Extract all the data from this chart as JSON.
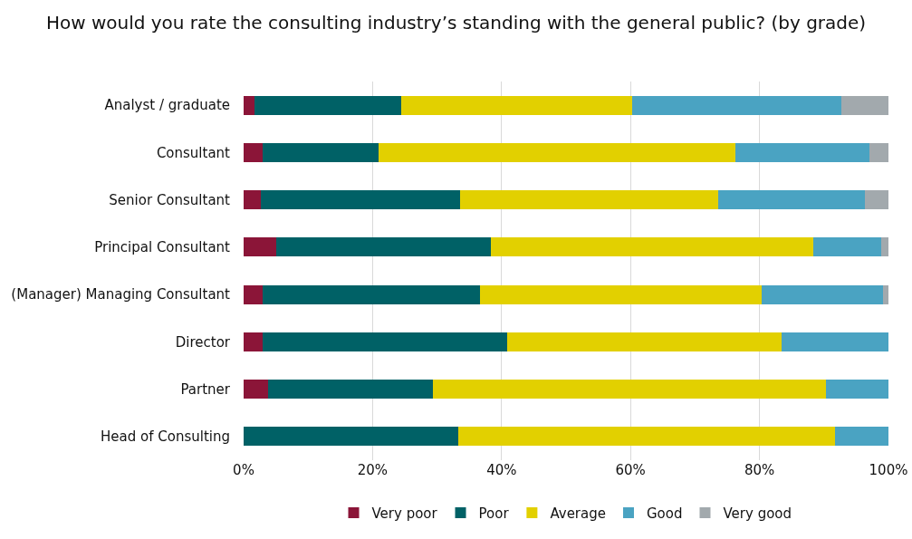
{
  "chart_data": {
    "type": "bar",
    "orientation": "horizontal",
    "stacked": true,
    "title": "How would you rate the consulting industry’s standing with the general public? (by grade)",
    "categories": [
      "Analyst / graduate",
      "Consultant",
      "Senior Consultant",
      "Principal Consultant",
      "(Manager) Managing Consultant",
      "Director",
      "Partner",
      "Head of Consulting"
    ],
    "series": [
      {
        "name": "Very poor",
        "color": "#8b1538",
        "values": [
          1.7,
          2.9,
          2.6,
          5.0,
          2.9,
          2.9,
          3.8,
          0
        ]
      },
      {
        "name": "Poor",
        "color": "#006166",
        "values": [
          22.7,
          18.0,
          31.0,
          33.4,
          33.7,
          37.9,
          25.5,
          33.3
        ]
      },
      {
        "name": "Average",
        "color": "#e2d000",
        "values": [
          35.9,
          55.3,
          40.0,
          50.0,
          43.8,
          42.6,
          61.0,
          58.4
        ]
      },
      {
        "name": "Good",
        "color": "#4aa3c2",
        "values": [
          32.4,
          20.8,
          22.8,
          10.5,
          18.8,
          16.6,
          9.7,
          8.3
        ]
      },
      {
        "name": "Very good",
        "color": "#a2a9ad",
        "values": [
          7.3,
          3.0,
          3.6,
          1.1,
          0.8,
          0,
          0,
          0
        ]
      }
    ],
    "xlim": [
      0,
      100
    ],
    "xticks": [
      {
        "value": 0,
        "label": "0%"
      },
      {
        "value": 20,
        "label": "20%"
      },
      {
        "value": 40,
        "label": "40%"
      },
      {
        "value": 60,
        "label": "60%"
      },
      {
        "value": 80,
        "label": "80%"
      },
      {
        "value": 100,
        "label": "100%"
      }
    ],
    "grid": "x",
    "legend": "bottom"
  }
}
